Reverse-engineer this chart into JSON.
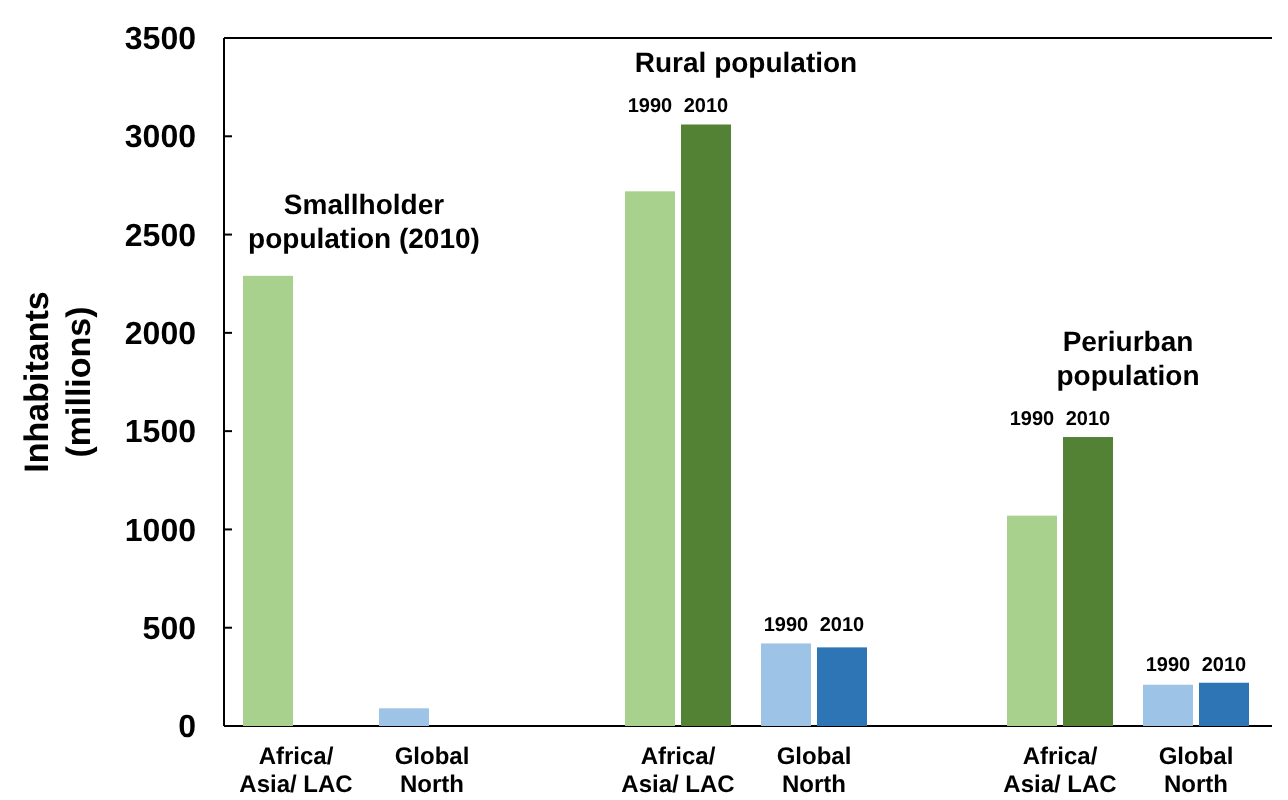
{
  "chart_data": {
    "type": "bar",
    "ylabel": "Inhabitants (millions)",
    "categories": [
      "Africa/ Asia/ LAC",
      "Global North",
      "Africa/ Asia/ LAC",
      "Global North",
      "Africa/ Asia/ LAC",
      "Global North"
    ],
    "series": [
      {
        "values": [
          2290,
          90,
          null,
          null,
          null,
          null
        ],
        "colors": [
          "#a9d18e",
          "#9dc3e6",
          null,
          null,
          null,
          null
        ]
      },
      {
        "name": "1990",
        "values": [
          null,
          null,
          2720,
          420,
          1070,
          210
        ],
        "colors": [
          null,
          null,
          "#a9d18e",
          "#9dc3e6",
          "#a9d18e",
          "#9dc3e6"
        ]
      },
      {
        "name": "2010",
        "values": [
          null,
          null,
          3060,
          400,
          1470,
          220
        ],
        "colors": [
          null,
          null,
          "#548235",
          "#2e75b6",
          "#548235",
          "#2e75b6"
        ]
      }
    ],
    "annotations": [
      "Smallholder population (2010)",
      "Rural population",
      "Periurban population"
    ],
    "ylim": [
      0,
      3500
    ],
    "yticks": [
      0,
      500,
      1000,
      1500,
      2000,
      2500,
      3000,
      3500
    ],
    "grid": false
  }
}
